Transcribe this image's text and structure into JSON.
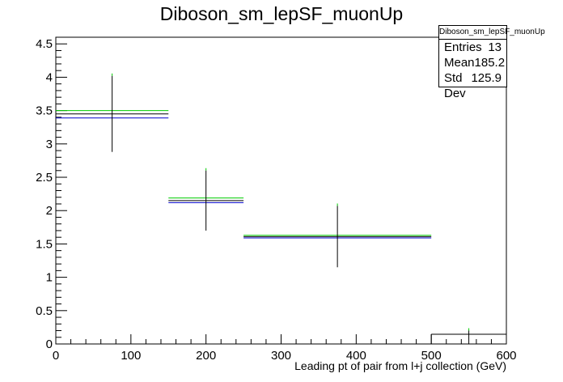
{
  "chart_data": {
    "type": "histogram",
    "title": "Diboson_sm_lepSF_muonUp",
    "xlabel": "Leading pt of pair from l+j collection (GeV)",
    "ylabel": "",
    "xlim": [
      0,
      600
    ],
    "ylim": [
      0,
      4.6
    ],
    "x_ticks": [
      0,
      100,
      200,
      300,
      400,
      500,
      600
    ],
    "y_ticks": [
      0,
      0.5,
      1,
      1.5,
      2,
      2.5,
      3,
      3.5,
      4,
      4.5
    ],
    "bins": [
      {
        "xlow": 0,
        "xhigh": 150,
        "center": 75
      },
      {
        "xlow": 150,
        "xhigh": 250,
        "center": 200
      },
      {
        "xlow": 250,
        "xhigh": 500,
        "center": 375
      },
      {
        "xlow": 500,
        "xhigh": 600,
        "center": 550
      }
    ],
    "series": [
      {
        "color": "#00cc00",
        "values": [
          3.5,
          2.19,
          1.63,
          0.0
        ]
      },
      {
        "color": "#000000",
        "values": [
          3.45,
          2.15,
          1.61,
          0.0
        ],
        "errors": [
          0.57,
          0.45,
          0.46,
          0.2
        ]
      },
      {
        "color": "#0000cc",
        "values": [
          3.39,
          2.12,
          1.59,
          0.0
        ]
      }
    ],
    "stats": {
      "title": "Diboson_sm_lepSF_muonUp",
      "rows": [
        {
          "label": "Entries",
          "value": "13"
        },
        {
          "label": "Mean",
          "value": "185.2"
        },
        {
          "label": "Std Dev",
          "value": "125.9"
        }
      ]
    }
  }
}
